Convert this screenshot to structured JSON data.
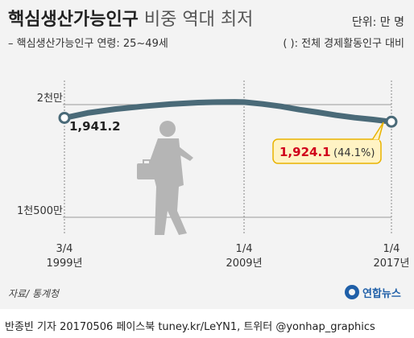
{
  "header": {
    "title_main": "핵심생산가능인구",
    "title_sub": "비중 역대 최저",
    "unit": "단위: 만 명",
    "legend": "– 핵심생산가능인구 연령: 25~49세",
    "note": "( ): 전체 경제활동인구 대비"
  },
  "chart_data": {
    "type": "line",
    "title": "핵심생산가능인구 비중 역대 최저",
    "ylabel": "단위: 만 명",
    "ylim": [
      1500,
      2000
    ],
    "y_ticks": [
      {
        "value": 2000,
        "label": "2천만"
      },
      {
        "value": 1500,
        "label": "1천500만"
      }
    ],
    "x_ticks": [
      {
        "x": 1999.25,
        "label_top": "3/4",
        "label_bottom": "1999년"
      },
      {
        "x": 2009.0,
        "label_top": "1/4",
        "label_bottom": "2009년"
      },
      {
        "x": 2017.0,
        "label_top": "1/4",
        "label_bottom": "2017년"
      }
    ],
    "xlim": [
      1999.25,
      2017.0
    ],
    "series": [
      {
        "name": "핵심생산가능인구",
        "color": "#4a6a78",
        "x": [
          1999.25,
          2000.5,
          2002.0,
          2003.5,
          2005.0,
          2006.5,
          2007.5,
          2008.5,
          2009.0,
          2010.0,
          2011.0,
          2012.0,
          2013.0,
          2014.0,
          2015.0,
          2016.0,
          2017.0
        ],
        "y": [
          1941.2,
          1963,
          1980,
          1992,
          2002,
          2009,
          2011,
          2012,
          2011,
          2003,
          1992,
          1978,
          1966,
          1953,
          1942,
          1934,
          1924.1
        ]
      }
    ],
    "annotations": [
      {
        "x": 1999.25,
        "y": 1941.2,
        "label": "1,941.2"
      },
      {
        "x": 2017.0,
        "y": 1924.1,
        "label": "1,924.1",
        "extra": "(44.1%)"
      }
    ],
    "grid": false,
    "colors": {
      "line": "#4a6a78",
      "highlight": "#d0021b",
      "callout_bg": "#fff3c4",
      "callout_border": "#e9b300"
    }
  },
  "source": "자료/ 통계청",
  "logo": "연합뉴스",
  "footer": "반종빈 기자 20170506 페이스북 tuney.kr/LeYN1, 트위터 @yonhap_graphics"
}
